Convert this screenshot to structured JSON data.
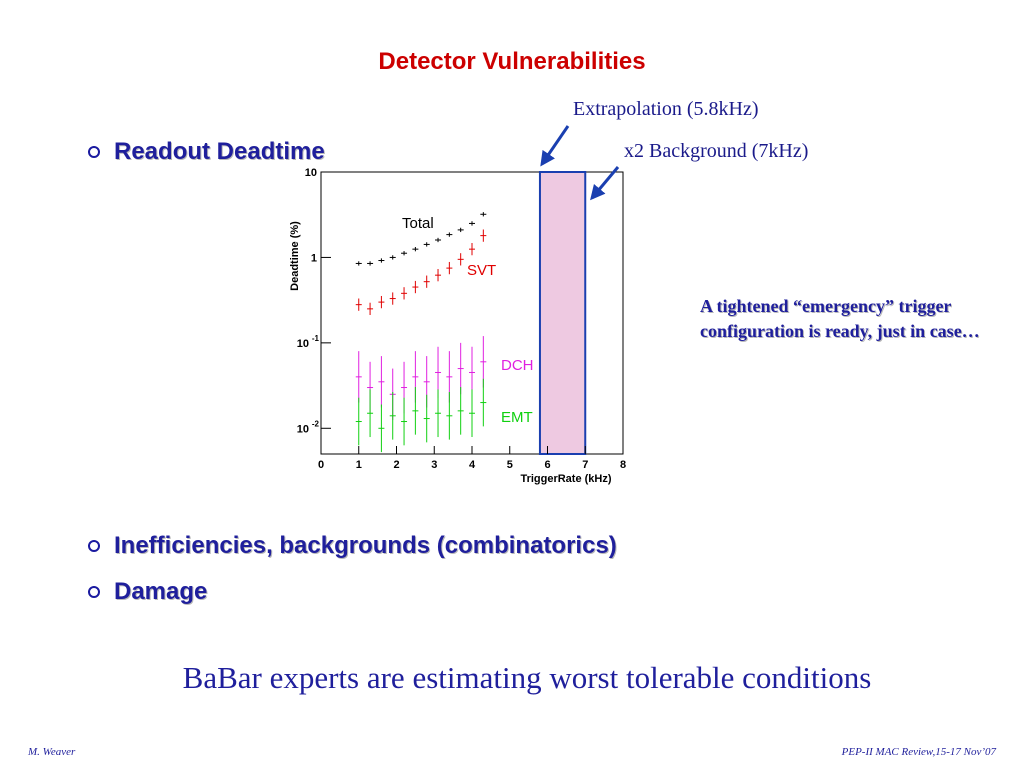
{
  "slide": {
    "title": "Detector Vulnerabilities",
    "bullets": [
      "Readout Deadtime",
      "Inefficiencies, backgrounds (combinatorics)",
      "Damage"
    ],
    "annotations": {
      "extrapolation": "Extrapolation (5.8kHz)",
      "background": "x2 Background (7kHz)"
    },
    "note": "A tightened “emergency” trigger configuration is ready, just in case…",
    "summary": "BaBar experts are estimating worst tolerable conditions",
    "footer": {
      "left": "M. Weaver",
      "right": "PEP-II  MAC Review,15-17 Nov’07"
    },
    "colors": {
      "title": "#cc0000",
      "text": "#1f1f9c",
      "band": "#eec9e1",
      "arrow": "#1a3fb0"
    }
  },
  "chart_data": {
    "type": "scatter",
    "xlabel": "TriggerRate (kHz)",
    "ylabel": "Deadtime (%)",
    "xlim": [
      0,
      8
    ],
    "ylim": [
      0.005,
      10
    ],
    "log_y": true,
    "xticks": [
      "0",
      "1",
      "2",
      "3",
      "4",
      "5",
      "6",
      "7",
      "8"
    ],
    "yticks": [
      {
        "base": "10",
        "exp": "-2",
        "value": 0.01
      },
      {
        "base": "10",
        "exp": "-1",
        "value": 0.1
      },
      {
        "base": "1",
        "exp": "",
        "value": 1
      },
      {
        "base": "10",
        "exp": "",
        "value": 10
      }
    ],
    "band": {
      "x0": 5.8,
      "x1": 7.0
    },
    "series": [
      {
        "name": "Total",
        "color": "#000000",
        "x": [
          1.0,
          1.3,
          1.6,
          1.9,
          2.2,
          2.5,
          2.8,
          3.1,
          3.4,
          3.7,
          4.0,
          4.3
        ],
        "y": [
          0.85,
          0.85,
          0.92,
          1.0,
          1.12,
          1.25,
          1.42,
          1.6,
          1.85,
          2.1,
          2.5,
          3.2
        ]
      },
      {
        "name": "SVT",
        "color": "#e00000",
        "x": [
          1.0,
          1.3,
          1.6,
          1.9,
          2.2,
          2.5,
          2.8,
          3.1,
          3.4,
          3.7,
          4.0,
          4.3
        ],
        "y": [
          0.28,
          0.25,
          0.3,
          0.33,
          0.38,
          0.45,
          0.52,
          0.62,
          0.75,
          0.95,
          1.25,
          1.8
        ]
      },
      {
        "name": "DCH",
        "color": "#e020e0",
        "x": [
          1.0,
          1.3,
          1.6,
          1.9,
          2.2,
          2.5,
          2.8,
          3.1,
          3.4,
          3.7,
          4.0,
          4.3
        ],
        "y": [
          0.04,
          0.03,
          0.035,
          0.025,
          0.03,
          0.04,
          0.035,
          0.045,
          0.04,
          0.05,
          0.045,
          0.06
        ]
      },
      {
        "name": "EMT",
        "color": "#10d010",
        "x": [
          1.0,
          1.3,
          1.6,
          1.9,
          2.2,
          2.5,
          2.8,
          3.1,
          3.4,
          3.7,
          4.0,
          4.3
        ],
        "y": [
          0.012,
          0.015,
          0.01,
          0.014,
          0.012,
          0.016,
          0.013,
          0.015,
          0.014,
          0.016,
          0.015,
          0.02
        ]
      }
    ]
  }
}
